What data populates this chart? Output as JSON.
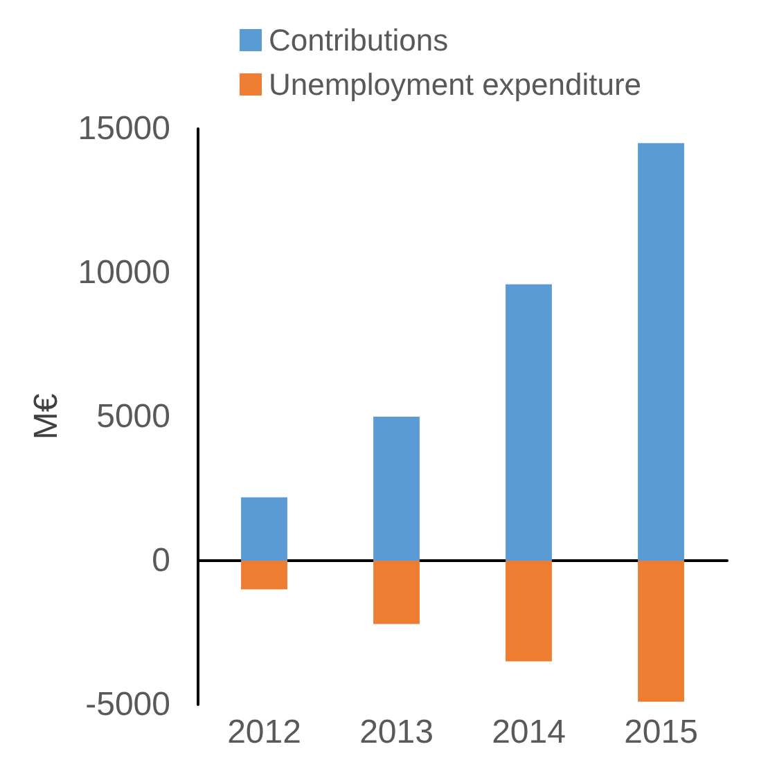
{
  "chart_data": {
    "type": "bar",
    "ylabel": "M€",
    "categories": [
      "2012",
      "2013",
      "2014",
      "2015"
    ],
    "stacked": true,
    "series": [
      {
        "name": "Contributions",
        "color": "#5b9bd5",
        "values": [
          2200,
          5000,
          9600,
          14500
        ]
      },
      {
        "name": "Unemployment expenditure",
        "color": "#ed7d31",
        "values": [
          -1000,
          -2200,
          -3500,
          -4900
        ]
      }
    ],
    "ylim": [
      -5000,
      15000
    ],
    "yticks": [
      -5000,
      0,
      5000,
      10000,
      15000
    ],
    "legend": "top left"
  }
}
